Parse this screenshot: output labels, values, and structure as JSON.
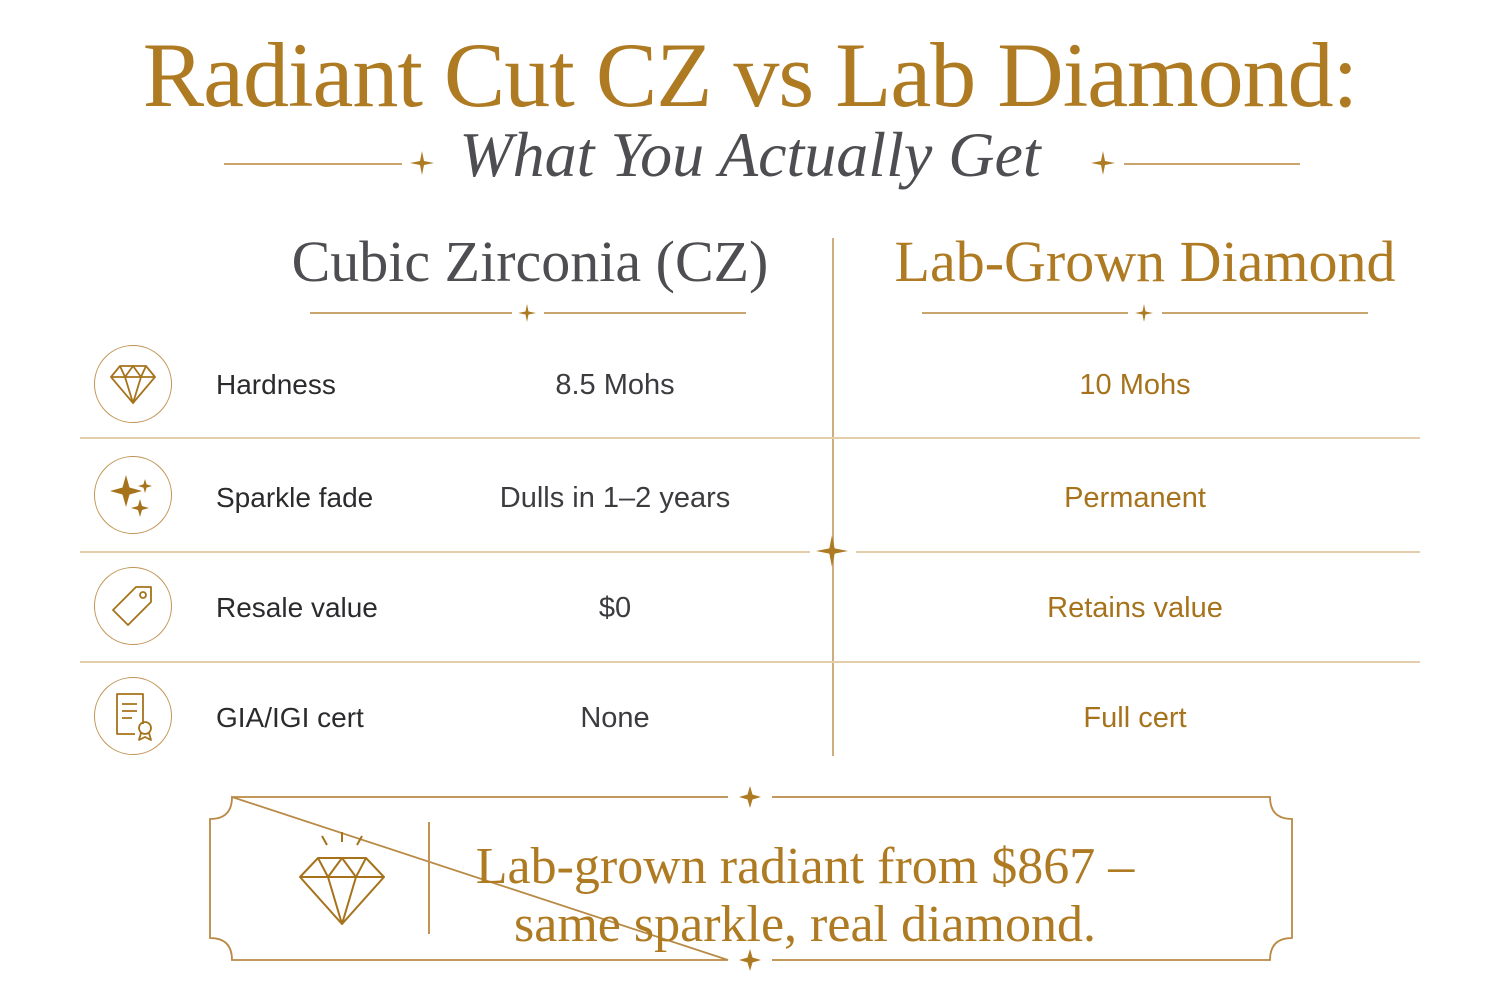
{
  "header": {
    "title": "Radiant Cut CZ vs Lab Diamond:",
    "subtitle": "What You Actually Get"
  },
  "columns": {
    "cz": "Cubic Zirconia (CZ)",
    "lab": "Lab-Grown Diamond"
  },
  "rows": [
    {
      "icon": "diamond-icon",
      "label": "Hardness",
      "cz": "8.5 Mohs",
      "lab": "10 Mohs"
    },
    {
      "icon": "sparkle-icon",
      "label": "Sparkle fade",
      "cz": "Dulls in 1–2 years",
      "lab": "Permanent"
    },
    {
      "icon": "price-tag-icon",
      "label": "Resale value",
      "cz": "$0",
      "lab": "Retains value"
    },
    {
      "icon": "certificate-icon",
      "label": "GIA/IGI cert",
      "cz": "None",
      "lab": "Full cert"
    }
  ],
  "banner": {
    "icon": "shining-diamond-icon",
    "line1": "Lab-grown radiant from $867 –",
    "line2": "same sparkle, real diamond."
  },
  "colors": {
    "gold": "#ae7a22",
    "charcoal": "#4e4e52",
    "rule": "#e3ceac"
  }
}
